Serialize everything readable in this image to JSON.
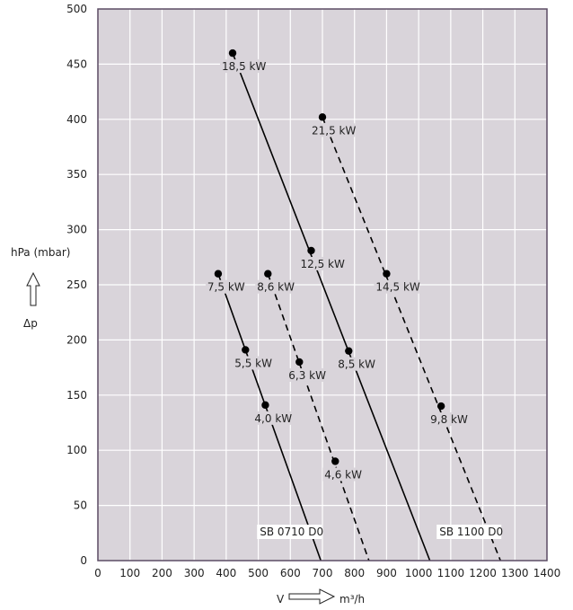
{
  "chart_data": {
    "type": "line",
    "y_axis": {
      "label": "hPa (mbar)",
      "symbol": "Δp",
      "ylim": [
        0,
        500
      ],
      "ticks": [
        "0",
        "50",
        "100",
        "150",
        "200",
        "250",
        "300",
        "350",
        "400",
        "450",
        "500"
      ]
    },
    "x_axis": {
      "label_left": "V",
      "label_right": "m³/h",
      "xlim": [
        0,
        1400
      ],
      "ticks": [
        "0",
        "100",
        "200",
        "300",
        "400",
        "500",
        "600",
        "700",
        "800",
        "900",
        "1000",
        "1100",
        "1200",
        "1300",
        "1400"
      ]
    },
    "grid": true,
    "colors": {
      "plot_bg": "#d9d4da",
      "grid": "#ffffff",
      "frame": "#5a4a63",
      "line": "#000000"
    },
    "series": [
      {
        "name": "SB 0710 D0",
        "style": "solid",
        "x": [
          375,
          695
        ],
        "y": [
          260,
          0
        ],
        "points": [
          {
            "x": 375,
            "y": 260,
            "label": "7,5 kW"
          },
          {
            "x": 460,
            "y": 191,
            "label": "5,5 kW"
          },
          {
            "x": 522,
            "y": 141,
            "label": "4,0 kW"
          }
        ]
      },
      {
        "name": "",
        "style": "dashed",
        "x": [
          530,
          845
        ],
        "y": [
          260,
          0
        ],
        "points": [
          {
            "x": 530,
            "y": 260,
            "label": "8,6 kW"
          },
          {
            "x": 628,
            "y": 180,
            "label": "6,3 kW"
          },
          {
            "x": 740,
            "y": 90,
            "label": "4,6 kW"
          }
        ]
      },
      {
        "name": "",
        "style": "solid",
        "x": [
          420,
          1035
        ],
        "y": [
          460,
          0
        ],
        "points": [
          {
            "x": 420,
            "y": 460,
            "label": "18,5 kW"
          },
          {
            "x": 665,
            "y": 281,
            "label": "12,5 kW"
          },
          {
            "x": 782,
            "y": 190,
            "label": "8,5 kW"
          }
        ]
      },
      {
        "name": "SB 1100 D0",
        "style": "dashed",
        "x": [
          700,
          1255
        ],
        "y": [
          402,
          0
        ],
        "points": [
          {
            "x": 700,
            "y": 402,
            "label": "21,5 kW"
          },
          {
            "x": 900,
            "y": 260,
            "label": "14,5 kW"
          },
          {
            "x": 1070,
            "y": 140,
            "label": "9,8 kW"
          }
        ]
      }
    ]
  }
}
